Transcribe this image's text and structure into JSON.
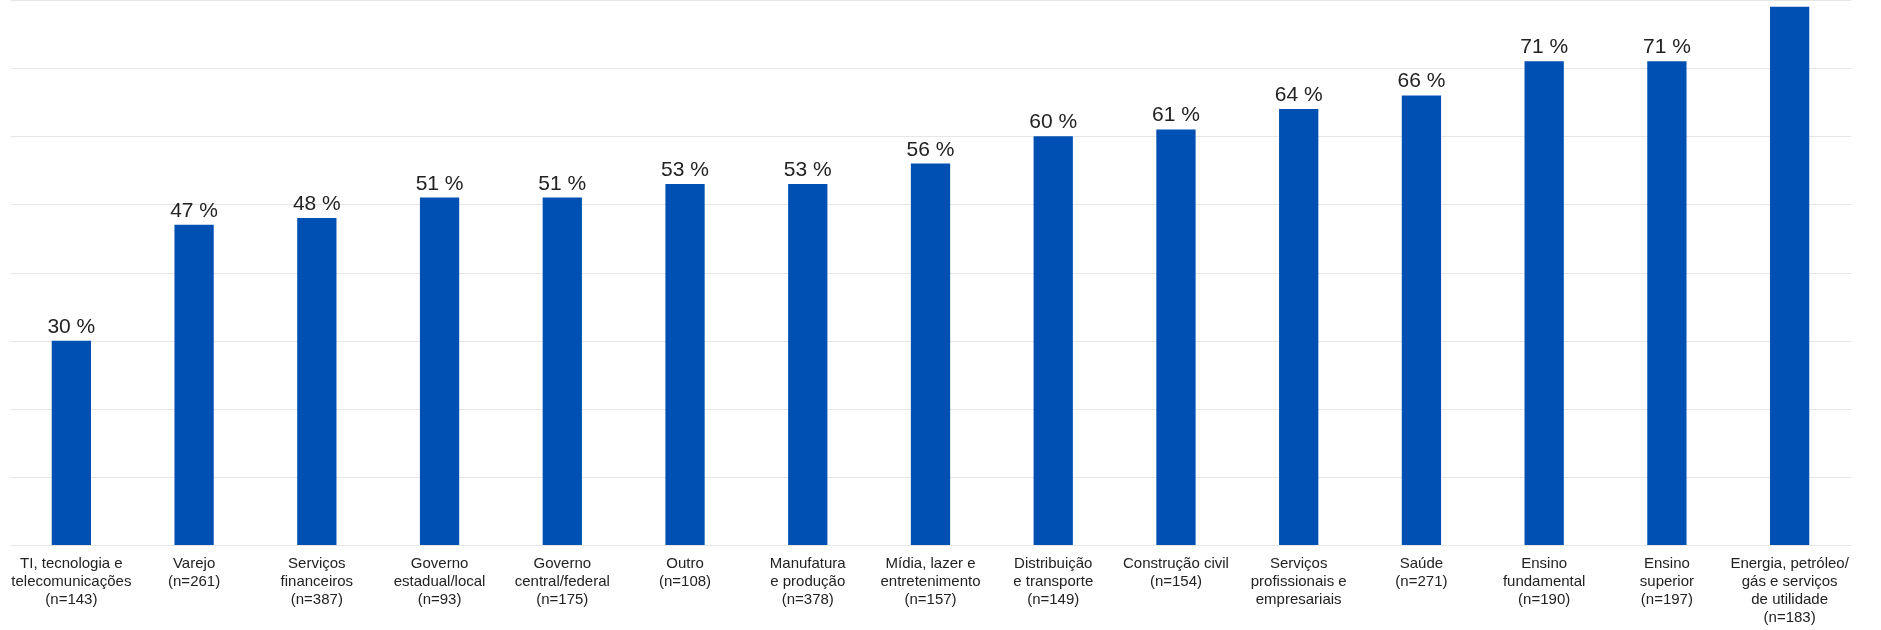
{
  "chart_data": {
    "type": "bar",
    "categories": [
      "TI, tecnologia e\ntelecomunicações\n(n=143)",
      "Varejo\n(n=261)",
      "Serviços\nfinanceiros\n(n=387)",
      "Governo\nestadual/local\n(n=93)",
      "Governo\ncentral/federal\n(n=175)",
      "Outro\n(n=108)",
      "Manufatura\ne produção\n(n=378)",
      "Mídia, lazer e\nentretenimento\n(n=157)",
      "Distribuição\ne transporte\n(n=149)",
      "Construção civil\n(n=154)",
      "Serviços\nprofissionais e\nempresariais",
      "Saúde\n(n=271)",
      "Ensino\nfundamental\n(n=190)",
      "Ensino\nsuperior\n(n=197)",
      "Energia, petróleo/\ngás e serviços\nde utilidade\n(n=183)"
    ],
    "values": [
      30,
      47,
      48,
      51,
      51,
      53,
      53,
      56,
      60,
      61,
      64,
      66,
      71,
      71,
      79
    ],
    "value_labels": [
      "30 %",
      "47 %",
      "48 %",
      "51 %",
      "51 %",
      "53 %",
      "53 %",
      "56 %",
      "60 %",
      "61 %",
      "64 %",
      "66 %",
      "71 %",
      "71 %",
      null
    ],
    "color": "#0050b4",
    "ylim": [
      0,
      80
    ],
    "yticks": [
      {
        "value": 0,
        "label": null
      },
      {
        "value": 10,
        "label": null
      },
      {
        "value": 20,
        "label": null
      },
      {
        "value": 30,
        "label": null
      },
      {
        "value": 40,
        "label": null
      },
      {
        "value": 50,
        "label": null
      },
      {
        "value": 60,
        "label": null
      },
      {
        "value": 70,
        "label": null
      },
      {
        "value": 80,
        "label": null
      }
    ],
    "grid": "y",
    "tick_labels": "x"
  }
}
